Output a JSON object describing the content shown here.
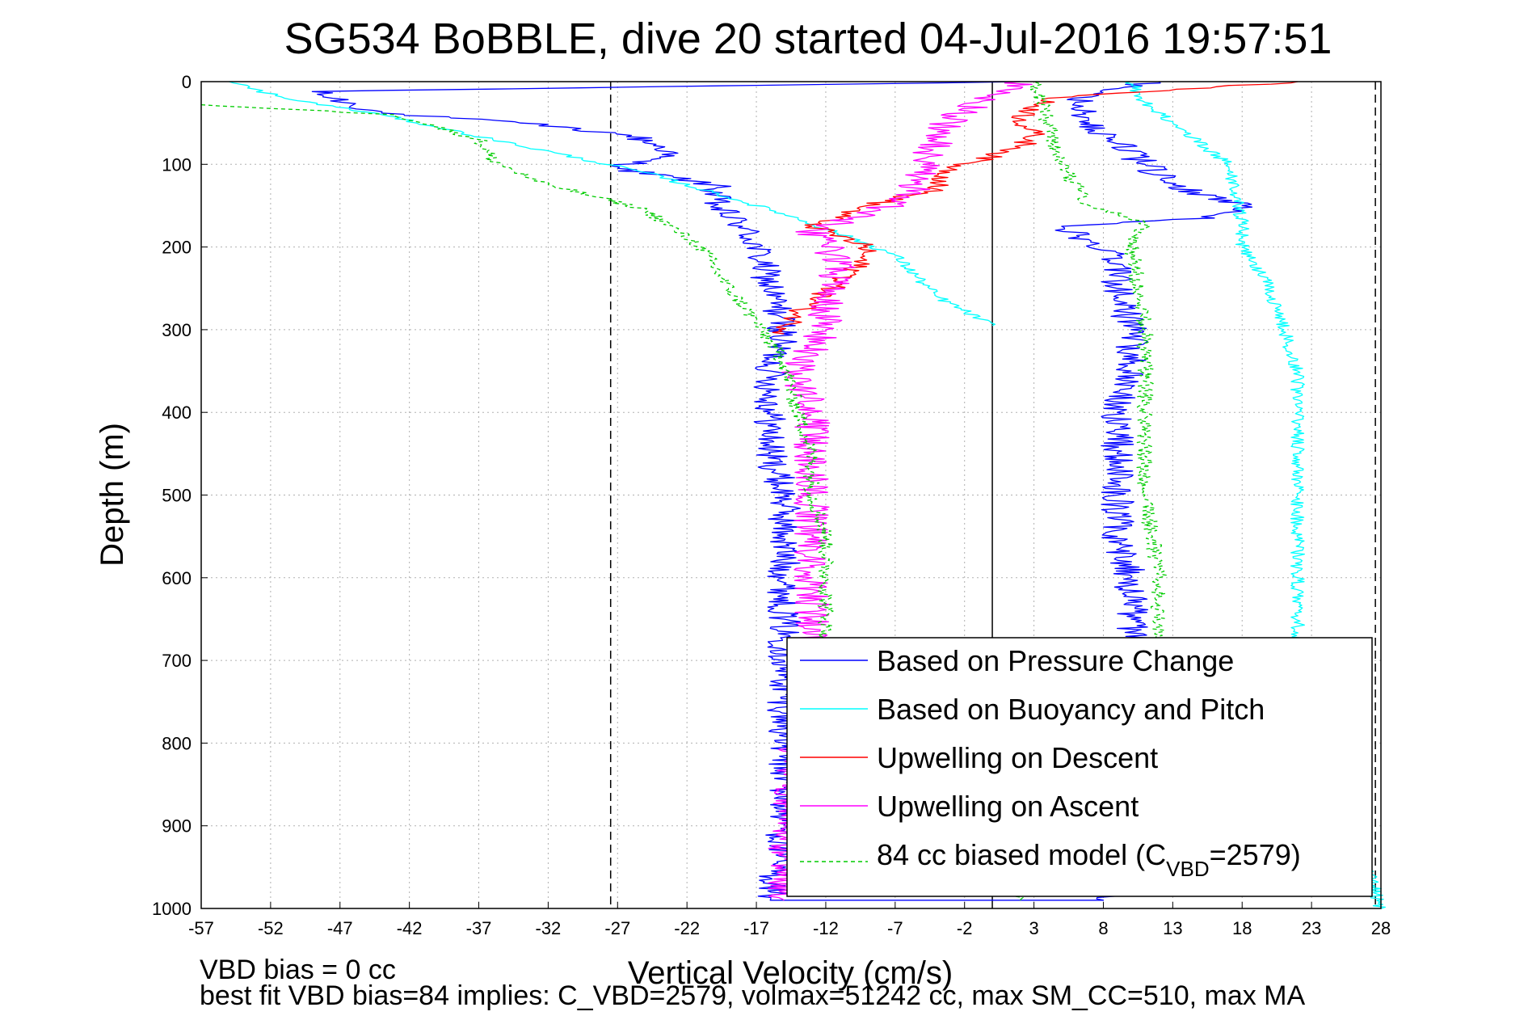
{
  "chart_data": {
    "type": "line",
    "title": "SG534 BoBBLE, dive 20 started 04-Jul-2016 19:57:51",
    "xlabel": "Vertical Velocity (cm/s)",
    "ylabel": "Depth (m)",
    "xlim": [
      -57,
      28
    ],
    "ylim": [
      0,
      1000
    ],
    "y_reversed": true,
    "grid": true,
    "x_ticks": [
      -57,
      -52,
      -47,
      -42,
      -37,
      -32,
      -27,
      -22,
      -17,
      -12,
      -7,
      -2,
      3,
      8,
      13,
      18,
      23,
      28
    ],
    "y_ticks": [
      0,
      100,
      200,
      300,
      400,
      500,
      600,
      700,
      800,
      900,
      1000
    ],
    "reference_lines": [
      {
        "x": -27.5,
        "style": "dashed",
        "color": "#000000"
      },
      {
        "x": 0,
        "style": "solid",
        "color": "#000000"
      },
      {
        "x": 27.6,
        "style": "dashed",
        "color": "#000000"
      }
    ],
    "legend_position": "bottom-right",
    "series": [
      {
        "name": "Based on Pressure Change",
        "color": "#0000ff",
        "style": "solid",
        "jitter": 1.2,
        "points": [
          [
            2,
            0
          ],
          [
            -49,
            12
          ],
          [
            -44,
            38
          ],
          [
            -34,
            50
          ],
          [
            -26,
            65
          ],
          [
            -23,
            85
          ],
          [
            -27,
            105
          ],
          [
            -20,
            125
          ],
          [
            -20,
            150
          ],
          [
            -18,
            175
          ],
          [
            -17,
            200
          ],
          [
            -16,
            250
          ],
          [
            -15,
            300
          ],
          [
            -16,
            350
          ],
          [
            -16,
            400
          ],
          [
            -16,
            450
          ],
          [
            -15,
            500
          ],
          [
            -15,
            550
          ],
          [
            -15,
            600
          ],
          [
            -15,
            650
          ],
          [
            -15,
            700
          ],
          [
            -15,
            800
          ],
          [
            -15,
            900
          ],
          [
            -16,
            990
          ],
          [
            8,
            990
          ],
          [
            10,
            900
          ],
          [
            10,
            800
          ],
          [
            10,
            700
          ],
          [
            10,
            650
          ],
          [
            10,
            600
          ],
          [
            9,
            550
          ],
          [
            9,
            500
          ],
          [
            9,
            450
          ],
          [
            9,
            400
          ],
          [
            10,
            350
          ],
          [
            10,
            300
          ],
          [
            9,
            250
          ],
          [
            9,
            210
          ],
          [
            5,
            175
          ],
          [
            16,
            165
          ],
          [
            18,
            150
          ],
          [
            13,
            125
          ],
          [
            11,
            100
          ],
          [
            9,
            75
          ],
          [
            7,
            50
          ],
          [
            6,
            25
          ],
          [
            8,
            10
          ],
          [
            12,
            0
          ]
        ]
      },
      {
        "name": "Based on Buoyancy and Pitch",
        "color": "#00ffff",
        "style": "solid",
        "jitter": 0.5,
        "points": [
          [
            -55,
            0
          ],
          [
            -51,
            20
          ],
          [
            -44,
            40
          ],
          [
            -40,
            55
          ],
          [
            -36,
            70
          ],
          [
            -25,
            110
          ],
          [
            -19,
            140
          ],
          [
            -15,
            160
          ],
          [
            -10,
            190
          ],
          [
            -7,
            210
          ],
          [
            -4,
            260
          ],
          [
            0,
            295
          ],
          [
            null,
            null
          ],
          [
            28,
            1000
          ],
          [
            22,
            700
          ],
          [
            22,
            600
          ],
          [
            22,
            500
          ],
          [
            22,
            400
          ],
          [
            22,
            350
          ],
          [
            21,
            300
          ],
          [
            20,
            250
          ],
          [
            18,
            200
          ],
          [
            18,
            170
          ],
          [
            17,
            100
          ],
          [
            13,
            50
          ],
          [
            11,
            25
          ],
          [
            10,
            0
          ]
        ]
      },
      {
        "name": "Upwelling on Descent",
        "color": "#ff0000",
        "style": "solid",
        "jitter": 0.9,
        "points": [
          [
            22,
            0
          ],
          [
            4,
            20
          ],
          [
            2,
            45
          ],
          [
            3,
            65
          ],
          [
            2,
            80
          ],
          [
            -3,
            105
          ],
          [
            -4,
            130
          ],
          [
            -9,
            150
          ],
          [
            -13,
            175
          ],
          [
            -9,
            200
          ],
          [
            -10,
            230
          ],
          [
            -12,
            255
          ],
          [
            -14,
            280
          ],
          [
            -15,
            305
          ]
        ]
      },
      {
        "name": "Upwelling on Ascent",
        "color": "#ff00ff",
        "style": "solid",
        "jitter": 1.3,
        "points": [
          [
            -15,
            990
          ],
          [
            -15,
            900
          ],
          [
            -14,
            800
          ],
          [
            -13,
            700
          ],
          [
            -13,
            650
          ],
          [
            -13,
            600
          ],
          [
            -13,
            550
          ],
          [
            -13,
            500
          ],
          [
            -13,
            450
          ],
          [
            -13,
            400
          ],
          [
            -14,
            350
          ],
          [
            -12,
            300
          ],
          [
            -12,
            260
          ],
          [
            -11,
            220
          ],
          [
            -13,
            180
          ],
          [
            -9,
            160
          ],
          [
            -6,
            140
          ],
          [
            -5,
            100
          ],
          [
            -4,
            70
          ],
          [
            -3,
            45
          ],
          [
            -1,
            25
          ],
          [
            1,
            10
          ],
          [
            2,
            0
          ]
        ]
      },
      {
        "name": "84 cc biased model (C_VBD=2579)",
        "color": "#00cc00",
        "style": "dashed",
        "jitter": 0.6,
        "points": [
          [
            -57,
            28
          ],
          [
            -43,
            40
          ],
          [
            -37,
            70
          ],
          [
            -36,
            95
          ],
          [
            -33,
            120
          ],
          [
            -25,
            155
          ],
          [
            -21,
            200
          ],
          [
            -19,
            250
          ],
          [
            -17,
            290
          ],
          [
            -15,
            340
          ],
          [
            -14,
            400
          ],
          [
            -13,
            450
          ],
          [
            -13,
            500
          ],
          [
            -12,
            550
          ],
          [
            -12,
            600
          ],
          [
            -12,
            650
          ],
          [
            -12,
            700
          ],
          [
            null,
            null
          ],
          [
            2,
            990
          ],
          [
            12,
            700
          ],
          [
            12,
            600
          ],
          [
            11,
            500
          ],
          [
            11,
            400
          ],
          [
            11,
            300
          ],
          [
            10,
            200
          ],
          [
            11,
            170
          ],
          [
            7,
            150
          ],
          [
            5,
            100
          ],
          [
            3,
            0
          ]
        ]
      }
    ],
    "legend": {
      "entries": [
        {
          "label": "Based on Pressure Change",
          "color": "#0000ff",
          "style": "solid"
        },
        {
          "label": "Based on Buoyancy and Pitch",
          "color": "#00ffff",
          "style": "solid"
        },
        {
          "label": "Upwelling on Descent",
          "color": "#ff0000",
          "style": "solid"
        },
        {
          "label": "Upwelling on Ascent",
          "color": "#ff00ff",
          "style": "solid"
        },
        {
          "label_main": "84 cc biased model (C",
          "label_sub": "VBD",
          "label_tail": "=2579)",
          "color": "#00cc00",
          "style": "dashed"
        }
      ]
    },
    "footer": {
      "line1": "VBD bias = 0 cc",
      "line2": "best fit VBD bias=84 implies: C_VBD=2579, volmax=51242 cc, max SM_CC=510, max MA"
    }
  }
}
